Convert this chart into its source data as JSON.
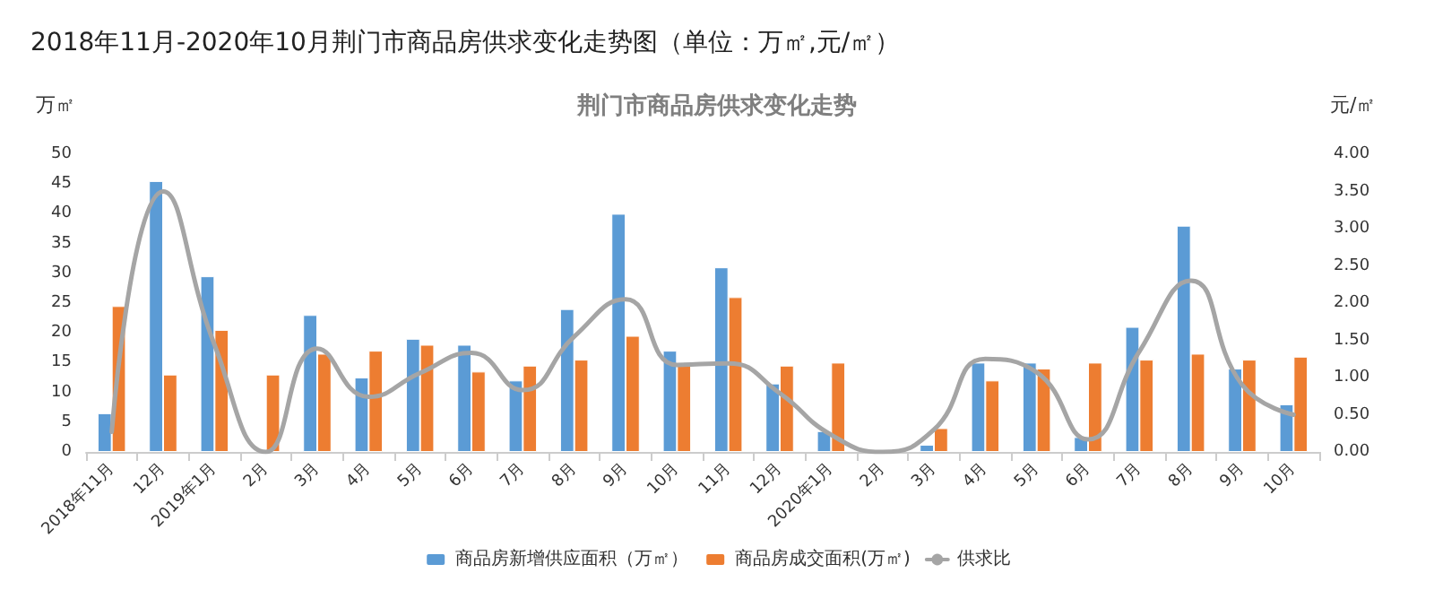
{
  "chart_data": {
    "type": "bar",
    "title": "2018年11月-2020年10月荆门市商品房供求变化走势图（单位：万㎡,元/㎡）",
    "subtitle": "荆门市商品房供求变化走势",
    "ylabel": "万㎡",
    "y2label": "元/㎡",
    "categories": [
      "2018年11月",
      "12月",
      "2019年1月",
      "2月",
      "3月",
      "4月",
      "5月",
      "6月",
      "7月",
      "8月",
      "9月",
      "10月",
      "11月",
      "12月",
      "2020年1月",
      "2月",
      "3月",
      "4月",
      "5月",
      "6月",
      "7月",
      "8月",
      "9月",
      "10月"
    ],
    "series": [
      {
        "name": "商品房新增供应面积（万㎡）",
        "color": "#5b9bd5",
        "values": [
          6.5,
          45.5,
          29.5,
          null,
          23,
          12.5,
          19,
          18,
          12,
          24,
          40,
          17,
          31,
          11.5,
          3.5,
          null,
          1.2,
          15,
          15,
          2.5,
          21,
          38,
          14,
          8
        ]
      },
      {
        "name": "商品房成交面积(万㎡)",
        "color": "#ed7d31",
        "values": [
          24.5,
          13,
          20.5,
          13,
          16.5,
          17,
          18,
          13.5,
          14.5,
          15.5,
          19.5,
          14.5,
          26,
          14.5,
          15,
          null,
          4,
          12,
          14,
          15,
          15.5,
          16.5,
          15.5,
          16
        ]
      },
      {
        "name": "供求比",
        "type": "line",
        "axis": "y2",
        "color": "#a5a5a5",
        "values": [
          0.27,
          3.5,
          1.44,
          0,
          1.39,
          0.74,
          1.06,
          1.33,
          0.83,
          1.55,
          2.05,
          1.17,
          1.19,
          0.79,
          0.23,
          0,
          0.3,
          1.25,
          1.07,
          0.17,
          1.35,
          2.3,
          0.9,
          0.5
        ]
      }
    ],
    "ylim": [
      0,
      50
    ],
    "yticks": [
      0,
      5,
      10,
      15,
      20,
      25,
      30,
      35,
      40,
      45,
      50
    ],
    "y2lim": [
      0,
      4
    ],
    "y2ticks": [
      {
        "value": 0,
        "label": "0.00"
      },
      {
        "value": 0.5,
        "label": "0.50"
      },
      {
        "value": 1,
        "label": "1.00"
      },
      {
        "value": 1.5,
        "label": "1.50"
      },
      {
        "value": 2,
        "label": "2.00"
      },
      {
        "value": 2.5,
        "label": "2.50"
      },
      {
        "value": 3,
        "label": "3.00"
      },
      {
        "value": 3.5,
        "label": "3.50"
      },
      {
        "value": 4,
        "label": "4.00"
      }
    ],
    "grid": false,
    "legend": "bottom",
    "marker": "none",
    "line_style": "solid"
  }
}
